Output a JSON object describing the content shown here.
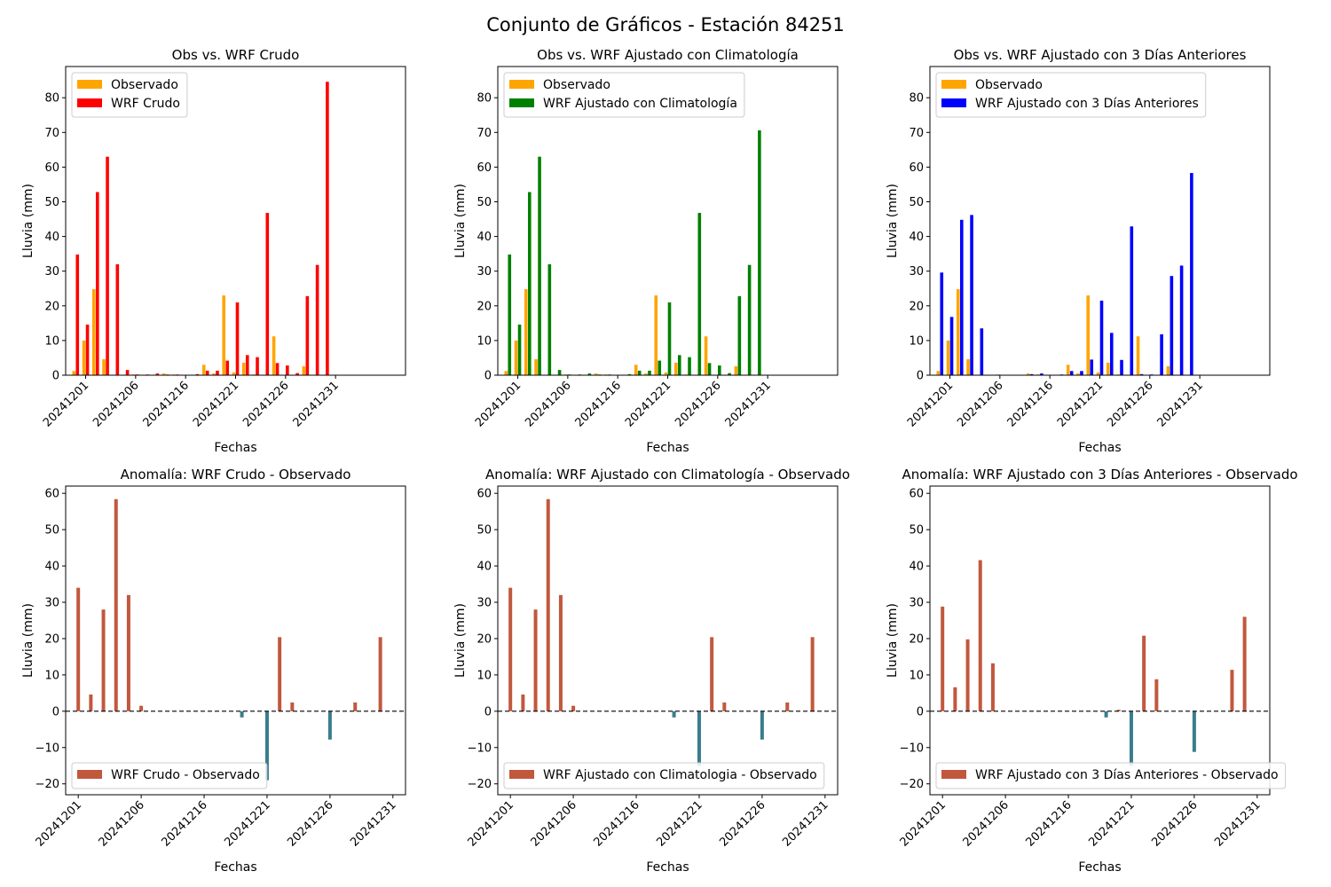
{
  "figure": {
    "title": "Conjunto de Gráficos - Estación 84251"
  },
  "colors": {
    "observado": "#FFA500",
    "wrf_crudo": "#FF0000",
    "wrf_clim": "#008000",
    "wrf_3d": "#0000FF",
    "anomaly_positive": "#C1583D",
    "anomaly_negative": "#3A7D8C"
  },
  "chart_data": [
    {
      "type": "bar",
      "title": "Obs vs. WRF Crudo",
      "xlabel": "Fechas",
      "ylabel": "Lluvia (mm)",
      "ylim": [
        0,
        89
      ],
      "yticks": [
        0,
        10,
        20,
        30,
        40,
        50,
        60,
        70,
        80
      ],
      "xlim": [
        0,
        34
      ],
      "xticks": [
        2,
        7,
        12,
        17,
        22,
        27
      ],
      "xticklabels": [
        "20241201",
        "20241206",
        "20241216",
        "20241221",
        "20241226",
        "20241231"
      ],
      "x": [
        1,
        2,
        3,
        4,
        5,
        6,
        7,
        8,
        9,
        10,
        11,
        12,
        13,
        14,
        15,
        16,
        17,
        18,
        19,
        20,
        21,
        22,
        23,
        24,
        25,
        26,
        27,
        28,
        29,
        30
      ],
      "legend": "upper left",
      "series": [
        {
          "name": "Observado",
          "color": "#FFA500",
          "values": [
            1.2,
            10.0,
            24.8,
            4.6,
            0,
            0,
            0.2,
            0,
            0,
            0.5,
            0.2,
            0,
            0,
            3.0,
            0.5,
            23.0,
            0.8,
            3.6,
            0.2,
            0,
            11.2,
            0,
            0,
            2.6,
            0,
            0,
            0,
            0,
            0,
            0
          ]
        },
        {
          "name": "WRF Crudo",
          "color": "#FF0000",
          "values": [
            34.8,
            14.6,
            52.8,
            63.0,
            32.0,
            1.5,
            0.2,
            0.2,
            0.5,
            0.2,
            0.2,
            0,
            0.3,
            1.3,
            1.3,
            4.2,
            21.0,
            5.8,
            5.2,
            46.8,
            3.5,
            2.8,
            0.6,
            22.8,
            31.8,
            84.6,
            0,
            0,
            0,
            0
          ]
        }
      ]
    },
    {
      "type": "bar",
      "title": "Obs vs. WRF Ajustado con Climatología",
      "xlabel": "Fechas",
      "ylabel": "Lluvia (mm)",
      "ylim": [
        0,
        89
      ],
      "yticks": [
        0,
        10,
        20,
        30,
        40,
        50,
        60,
        70,
        80
      ],
      "xlim": [
        0,
        34
      ],
      "xticks": [
        2,
        7,
        12,
        17,
        22,
        27
      ],
      "xticklabels": [
        "20241201",
        "20241206",
        "20241216",
        "20241221",
        "20241226",
        "20241231"
      ],
      "x": [
        1,
        2,
        3,
        4,
        5,
        6,
        7,
        8,
        9,
        10,
        11,
        12,
        13,
        14,
        15,
        16,
        17,
        18,
        19,
        20,
        21,
        22,
        23,
        24,
        25,
        26,
        27,
        28,
        29,
        30
      ],
      "legend": "upper left",
      "series": [
        {
          "name": "Observado",
          "color": "#FFA500",
          "values": [
            1.2,
            10.0,
            24.8,
            4.6,
            0,
            0,
            0.2,
            0,
            0,
            0.5,
            0.2,
            0,
            0,
            3.0,
            0.5,
            23.0,
            0.8,
            3.6,
            0.2,
            0,
            11.2,
            0,
            0,
            2.6,
            0,
            0,
            0,
            0,
            0,
            0
          ]
        },
        {
          "name": "WRF Ajustado con Climatología",
          "color": "#008000",
          "values": [
            34.8,
            14.6,
            52.8,
            63.0,
            32.0,
            1.5,
            0.2,
            0.2,
            0.5,
            0.2,
            0.2,
            0,
            0.3,
            1.3,
            1.3,
            4.2,
            21.0,
            5.8,
            5.2,
            46.8,
            3.5,
            2.8,
            0.6,
            22.8,
            31.8,
            70.6,
            0,
            0,
            0,
            0
          ]
        }
      ]
    },
    {
      "type": "bar",
      "title": "Obs vs. WRF Ajustado con 3 Días Anteriores",
      "xlabel": "Fechas",
      "ylabel": "Lluvia (mm)",
      "ylim": [
        0,
        89
      ],
      "yticks": [
        0,
        10,
        20,
        30,
        40,
        50,
        60,
        70,
        80
      ],
      "xlim": [
        0,
        34
      ],
      "xticks": [
        2,
        7,
        12,
        17,
        22,
        27
      ],
      "xticklabels": [
        "20241201",
        "20241206",
        "20241216",
        "20241221",
        "20241226",
        "20241231"
      ],
      "x": [
        1,
        2,
        3,
        4,
        5,
        6,
        7,
        8,
        9,
        10,
        11,
        12,
        13,
        14,
        15,
        16,
        17,
        18,
        19,
        20,
        21,
        22,
        23,
        24,
        25,
        26,
        27,
        28,
        29,
        30
      ],
      "legend": "upper left",
      "series": [
        {
          "name": "Observado",
          "color": "#FFA500",
          "values": [
            1.2,
            10.0,
            24.8,
            4.6,
            0,
            0,
            0.2,
            0,
            0,
            0.5,
            0.2,
            0,
            0,
            3.0,
            0.5,
            23.0,
            0.8,
            3.6,
            0.2,
            0,
            11.2,
            0,
            0,
            2.6,
            0,
            0,
            0,
            0,
            0,
            0
          ]
        },
        {
          "name": "WRF Ajustado con 3 Días Anteriores",
          "color": "#0000FF",
          "values": [
            29.6,
            16.8,
            44.8,
            46.2,
            13.5,
            0,
            0,
            0,
            0,
            0.3,
            0.5,
            0,
            0.2,
            1.2,
            1.2,
            4.5,
            21.5,
            12.2,
            4.4,
            42.9,
            0.3,
            0.2,
            11.8,
            28.6,
            31.6,
            58.3,
            0,
            0,
            0,
            0
          ]
        }
      ]
    },
    {
      "type": "bar",
      "title": "Anomalía: WRF Crudo - Observado",
      "xlabel": "Fechas",
      "ylabel": "Lluvia (mm)",
      "ylim": [
        -23,
        62
      ],
      "yticks": [
        -20,
        -10,
        0,
        10,
        20,
        30,
        40,
        50,
        60
      ],
      "xlim": [
        0,
        27
      ],
      "xticks": [
        1,
        6,
        11,
        16,
        21,
        26
      ],
      "xticklabels": [
        "20241201",
        "20241206",
        "20241216",
        "20241221",
        "20241226",
        "20241231"
      ],
      "legend": "lower left",
      "series": [
        {
          "name": "WRF Crudo - Observado",
          "color": "#C1583D",
          "x": [
            1,
            2,
            3,
            4,
            5,
            6,
            7,
            8,
            9,
            10,
            11,
            12,
            13,
            14,
            15,
            16,
            17,
            18,
            19,
            20,
            21,
            22,
            23,
            24,
            25
          ],
          "values": [
            34.0,
            4.6,
            28.0,
            58.4,
            32.0,
            1.5,
            0,
            0,
            0,
            0,
            0,
            0,
            0,
            -1.7,
            0,
            -19.0,
            20.4,
            2.4,
            0,
            0,
            -7.8,
            0,
            2.4,
            0,
            20.4
          ]
        }
      ]
    },
    {
      "type": "bar",
      "title": "Anomalía: WRF Ajustado con Climatología - Observado",
      "xlabel": "Fechas",
      "ylabel": "Lluvia (mm)",
      "ylim": [
        -23,
        62
      ],
      "yticks": [
        -20,
        -10,
        0,
        10,
        20,
        30,
        40,
        50,
        60
      ],
      "xlim": [
        0,
        27
      ],
      "xticks": [
        1,
        6,
        11,
        16,
        21,
        26
      ],
      "xticklabels": [
        "20241201",
        "20241206",
        "20241216",
        "20241221",
        "20241226",
        "20241231"
      ],
      "legend": "lower left",
      "series": [
        {
          "name": "WRF Ajustado con Climatologia - Observado",
          "color": "#C1583D",
          "x": [
            1,
            2,
            3,
            4,
            5,
            6,
            7,
            8,
            9,
            10,
            11,
            12,
            13,
            14,
            15,
            16,
            17,
            18,
            19,
            20,
            21,
            22,
            23,
            24,
            25
          ],
          "values": [
            34.0,
            4.6,
            28.0,
            58.4,
            32.0,
            1.5,
            0,
            0,
            0,
            0,
            0,
            0,
            0,
            -1.7,
            0,
            -15.0,
            20.4,
            2.4,
            0,
            0,
            -7.8,
            0,
            2.4,
            0,
            20.4
          ]
        }
      ]
    },
    {
      "type": "bar",
      "title": "Anomalía: WRF Ajustado con 3 Días Anteriores - Observado",
      "xlabel": "Fechas",
      "ylabel": "Lluvia (mm)",
      "ylim": [
        -23,
        62
      ],
      "yticks": [
        -20,
        -10,
        0,
        10,
        20,
        30,
        40,
        50,
        60
      ],
      "xlim": [
        0,
        27
      ],
      "xticks": [
        1,
        6,
        11,
        16,
        21,
        26
      ],
      "xticklabels": [
        "20241201",
        "20241206",
        "20241216",
        "20241221",
        "20241226",
        "20241231"
      ],
      "legend": "lower left",
      "series": [
        {
          "name": "WRF Ajustado con 3 Días Anteriores - Observado",
          "color": "#C1583D",
          "x": [
            1,
            2,
            3,
            4,
            5,
            6,
            7,
            8,
            9,
            10,
            11,
            12,
            13,
            14,
            15,
            16,
            17,
            18,
            19,
            20,
            21,
            22,
            23,
            24,
            25
          ],
          "values": [
            28.8,
            6.6,
            19.8,
            41.6,
            13.2,
            0,
            0,
            0,
            0,
            0,
            0,
            0,
            0,
            -1.7,
            0.4,
            -15.0,
            20.8,
            8.8,
            0,
            0,
            -11.2,
            0,
            0,
            11.4,
            26.0
          ]
        }
      ]
    }
  ]
}
